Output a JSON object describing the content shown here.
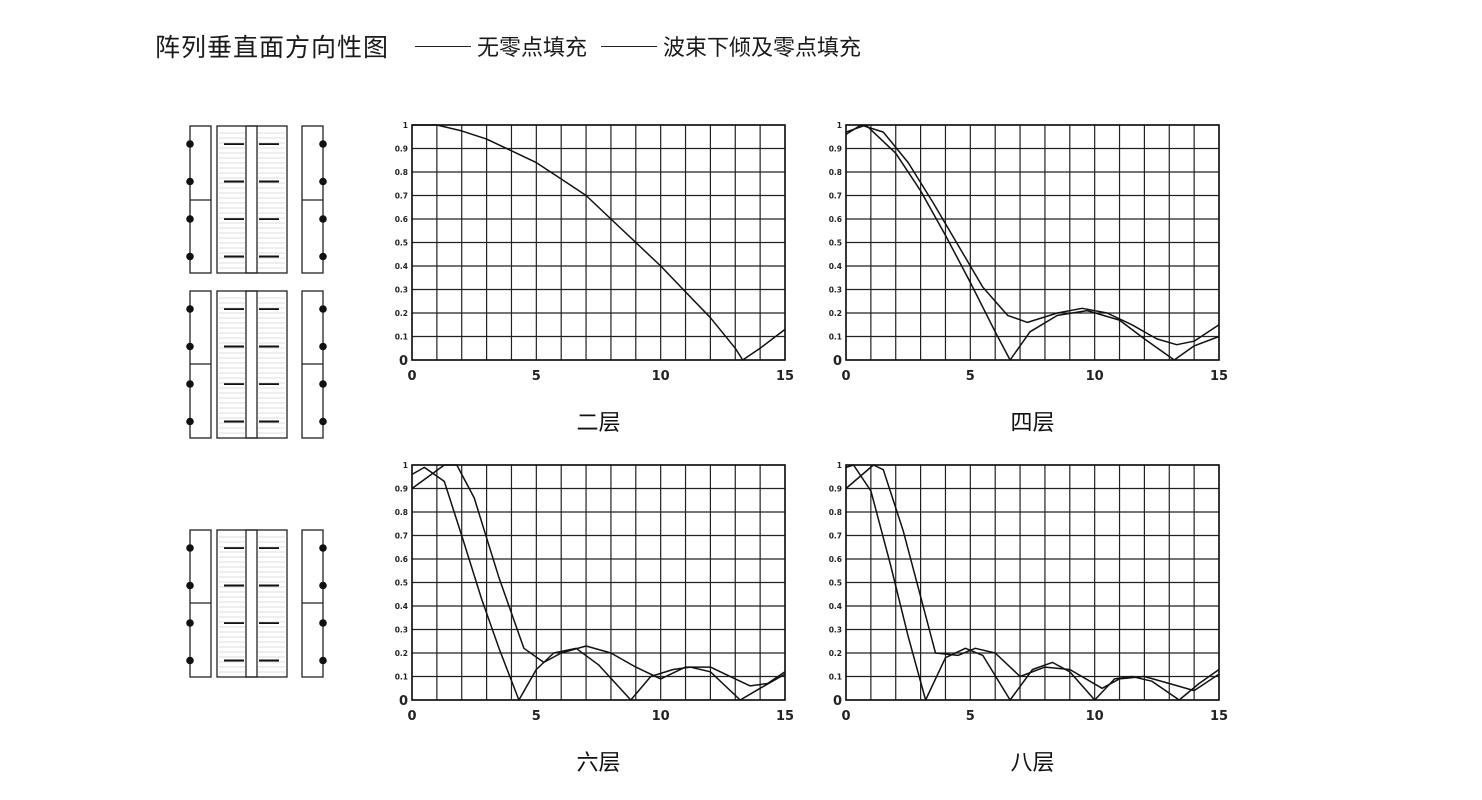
{
  "header": {
    "title": "阵列垂直面方向性图",
    "legend": [
      "无零点填充",
      "波束下倾及零点填充"
    ]
  },
  "chart_data": [
    {
      "type": "line",
      "title": "二层",
      "xlim": [
        0,
        15
      ],
      "ylim": [
        0,
        1
      ],
      "xticks": [
        "0",
        "5",
        "10",
        "15"
      ],
      "yticks": [
        "0",
        "0.1",
        "0.2",
        "0.3",
        "0.4",
        "0.5",
        "0.6",
        "0.7",
        "0.8",
        "0.9",
        "1"
      ],
      "grid": true,
      "series": [
        {
          "x": [
            0,
            1,
            2,
            3,
            4,
            5,
            6,
            7,
            8,
            9,
            10,
            11,
            12,
            13,
            13.3,
            14,
            15
          ],
          "y": [
            1,
            1,
            0.975,
            0.94,
            0.89,
            0.84,
            0.77,
            0.7,
            0.6,
            0.5,
            0.4,
            0.29,
            0.18,
            0.05,
            0,
            0.05,
            0.13
          ]
        }
      ]
    },
    {
      "type": "line",
      "title": "四层",
      "xlim": [
        0,
        15
      ],
      "ylim": [
        0,
        1
      ],
      "xticks": [
        "0",
        "5",
        "10",
        "15"
      ],
      "yticks": [
        "0",
        "0.1",
        "0.2",
        "0.3",
        "0.4",
        "0.5",
        "0.6",
        "0.7",
        "0.8",
        "0.9",
        "1"
      ],
      "grid": true,
      "series": [
        {
          "x": [
            0,
            0.8,
            2,
            3,
            4,
            5,
            6,
            6.6,
            7.4,
            8.5,
            9.7,
            11,
            12,
            13.2,
            14,
            15
          ],
          "y": [
            0.97,
            1,
            0.88,
            0.72,
            0.53,
            0.33,
            0.12,
            0,
            0.12,
            0.19,
            0.21,
            0.17,
            0.09,
            0,
            0.06,
            0.1
          ]
        },
        {
          "x": [
            0,
            0.6,
            1.5,
            2.5,
            3.5,
            4.5,
            5.5,
            6.5,
            7.3,
            8.5,
            9.5,
            10.5,
            11.5,
            12.5,
            13.3,
            14,
            15
          ],
          "y": [
            0.96,
            1,
            0.97,
            0.84,
            0.67,
            0.49,
            0.31,
            0.19,
            0.16,
            0.2,
            0.22,
            0.2,
            0.15,
            0.09,
            0.065,
            0.08,
            0.15
          ]
        }
      ]
    },
    {
      "type": "line",
      "title": "六层",
      "xlim": [
        0,
        15
      ],
      "ylim": [
        0,
        1
      ],
      "xticks": [
        "0",
        "5",
        "10",
        "15"
      ],
      "yticks": [
        "0",
        "0.1",
        "0.2",
        "0.3",
        "0.4",
        "0.5",
        "0.6",
        "0.7",
        "0.8",
        "0.9",
        "1"
      ],
      "grid": true,
      "series": [
        {
          "x": [
            0,
            0.5,
            1.3,
            2,
            2.8,
            3.5,
            4.3,
            5,
            5.7,
            6.6,
            7.5,
            8.8,
            9.6,
            10.5,
            11.2,
            12,
            13.2,
            14,
            15
          ],
          "y": [
            0.96,
            0.99,
            0.93,
            0.7,
            0.43,
            0.22,
            0,
            0.13,
            0.2,
            0.22,
            0.15,
            0,
            0.1,
            0.13,
            0.14,
            0.12,
            0,
            0.05,
            0.11
          ]
        },
        {
          "x": [
            0,
            1.3,
            1.8,
            2.5,
            3.5,
            4.5,
            5.3,
            6,
            7,
            8,
            9,
            10,
            11,
            12,
            13,
            13.6,
            14.3,
            15
          ],
          "y": [
            0.9,
            1,
            1,
            0.86,
            0.52,
            0.22,
            0.16,
            0.2,
            0.23,
            0.2,
            0.14,
            0.09,
            0.14,
            0.14,
            0.09,
            0.06,
            0.07,
            0.12
          ]
        }
      ]
    },
    {
      "type": "line",
      "title": "八层",
      "xlim": [
        0,
        15
      ],
      "ylim": [
        0,
        1
      ],
      "xticks": [
        "0",
        "5",
        "10",
        "15"
      ],
      "yticks": [
        "0",
        "0.1",
        "0.2",
        "0.3",
        "0.4",
        "0.5",
        "0.6",
        "0.7",
        "0.8",
        "0.9",
        "1"
      ],
      "grid": true,
      "series": [
        {
          "x": [
            0,
            0.3,
            1,
            1.8,
            2.5,
            3.2,
            4,
            4.8,
            5.5,
            6.6,
            7.5,
            8.3,
            9,
            10,
            10.8,
            11.5,
            12.3,
            13.4,
            14.2,
            15
          ],
          "y": [
            0.99,
            1,
            0.89,
            0.57,
            0.27,
            0,
            0.18,
            0.22,
            0.19,
            0,
            0.13,
            0.16,
            0.12,
            0,
            0.09,
            0.1,
            0.08,
            0,
            0.07,
            0.13
          ]
        },
        {
          "x": [
            0,
            1.1,
            1.5,
            2.3,
            3,
            3.6,
            4.5,
            5.2,
            6,
            7,
            8,
            9,
            10.3,
            11,
            12,
            13,
            14,
            15
          ],
          "y": [
            0.9,
            1,
            0.98,
            0.72,
            0.44,
            0.2,
            0.19,
            0.22,
            0.2,
            0.1,
            0.14,
            0.13,
            0.05,
            0.09,
            0.1,
            0.07,
            0.04,
            0.11
          ]
        }
      ]
    }
  ]
}
